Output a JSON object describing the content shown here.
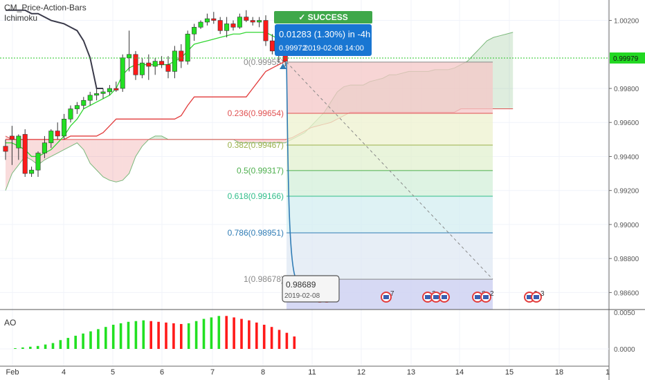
{
  "indicators": {
    "line1": "CM_Price-Action-Bars",
    "line2": "Ichimoku",
    "oscillator": "AO"
  },
  "success_banner": {
    "check": "✓",
    "label": "SUCCESS"
  },
  "trade_box": {
    "line1": "0.01283 (1.30%) in -4h",
    "line2_price": "0.99972",
    "line2_datetime": "2019-02-08  14:00"
  },
  "end_box": {
    "price": "0.98689",
    "date": "2019-02-08"
  },
  "current_price_label": "0.99979",
  "colors": {
    "up": "#22e022",
    "down": "#ff1a1a",
    "cloud_red": "#e05050",
    "cloud_green": "#7ab87a",
    "kijun": "#e23b3b",
    "tenkan": "#31d631",
    "chikou": "#3a3a4a",
    "success": "#3fa84a",
    "trade_box": "#1976d2",
    "fib_line": "#2e7bb5"
  },
  "chart_data": {
    "type": "candlestick",
    "y_axis": {
      "ticks": [
        "1.00200",
        "0.99979",
        "0.99800",
        "0.99600",
        "0.99400",
        "0.99200",
        "0.99000",
        "0.98800",
        "0.98600"
      ],
      "ylim": [
        0.985,
        1.0032
      ]
    },
    "x_axis": {
      "ticks": [
        "Feb",
        "4",
        "5",
        "6",
        "7",
        "8",
        "11",
        "12",
        "13",
        "14",
        "15",
        "18",
        "1"
      ]
    },
    "candles": [
      {
        "o": 0.9946,
        "h": 0.995,
        "l": 0.9938,
        "c": 0.9943
      },
      {
        "o": 0.9952,
        "h": 0.9958,
        "l": 0.9935,
        "c": 0.995
      },
      {
        "o": 0.9945,
        "h": 0.9953,
        "l": 0.9938,
        "c": 0.9952
      },
      {
        "o": 0.9953,
        "h": 0.9956,
        "l": 0.9928,
        "c": 0.993
      },
      {
        "o": 0.993,
        "h": 0.9934,
        "l": 0.9928,
        "c": 0.9932
      },
      {
        "o": 0.9932,
        "h": 0.9943,
        "l": 0.9928,
        "c": 0.9942
      },
      {
        "o": 0.9942,
        "h": 0.9952,
        "l": 0.9939,
        "c": 0.9948
      },
      {
        "o": 0.9948,
        "h": 0.9956,
        "l": 0.9945,
        "c": 0.9955
      },
      {
        "o": 0.9955,
        "h": 0.996,
        "l": 0.995,
        "c": 0.9952
      },
      {
        "o": 0.9952,
        "h": 0.9965,
        "l": 0.995,
        "c": 0.9962
      },
      {
        "o": 0.9962,
        "h": 0.997,
        "l": 0.996,
        "c": 0.9968
      },
      {
        "o": 0.9968,
        "h": 0.9972,
        "l": 0.9965,
        "c": 0.997
      },
      {
        "o": 0.997,
        "h": 0.9975,
        "l": 0.9968,
        "c": 0.9973
      },
      {
        "o": 0.9973,
        "h": 0.9978,
        "l": 0.997,
        "c": 0.9976
      },
      {
        "o": 0.9976,
        "h": 0.998,
        "l": 0.9973,
        "c": 0.9977
      },
      {
        "o": 0.9977,
        "h": 0.998,
        "l": 0.9974,
        "c": 0.9978
      },
      {
        "o": 0.9978,
        "h": 0.9982,
        "l": 0.9976,
        "c": 0.998
      },
      {
        "o": 0.998,
        "h": 0.9984,
        "l": 0.9978,
        "c": 0.9979
      },
      {
        "o": 0.998,
        "h": 1.0,
        "l": 0.9978,
        "c": 0.9998
      },
      {
        "o": 0.9998,
        "h": 1.0014,
        "l": 0.999,
        "c": 1.0
      },
      {
        "o": 1.0,
        "h": 1.0002,
        "l": 0.9985,
        "c": 0.9988
      },
      {
        "o": 0.9988,
        "h": 0.9998,
        "l": 0.9986,
        "c": 0.9995
      },
      {
        "o": 0.9995,
        "h": 1.0,
        "l": 0.9985,
        "c": 0.9993
      },
      {
        "o": 0.9993,
        "h": 0.9998,
        "l": 0.9988,
        "c": 0.9996
      },
      {
        "o": 0.9996,
        "h": 0.9999,
        "l": 0.9992,
        "c": 0.9994
      },
      {
        "o": 0.9994,
        "h": 0.9999,
        "l": 0.9986,
        "c": 0.999
      },
      {
        "o": 0.999,
        "h": 1.0005,
        "l": 0.9986,
        "c": 1.0002
      },
      {
        "o": 1.0002,
        "h": 1.0006,
        "l": 0.9992,
        "c": 0.9996
      },
      {
        "o": 0.9996,
        "h": 1.0014,
        "l": 0.9994,
        "c": 1.0012
      },
      {
        "o": 1.0012,
        "h": 1.0018,
        "l": 1.0008,
        "c": 1.0016
      },
      {
        "o": 1.0016,
        "h": 1.002,
        "l": 1.0015,
        "c": 1.0019
      },
      {
        "o": 1.0019,
        "h": 1.0024,
        "l": 1.0017,
        "c": 1.0021
      },
      {
        "o": 1.0021,
        "h": 1.0025,
        "l": 1.0018,
        "c": 1.002
      },
      {
        "o": 1.002,
        "h": 1.0022,
        "l": 1.0012,
        "c": 1.0014
      },
      {
        "o": 1.0014,
        "h": 1.0022,
        "l": 1.001,
        "c": 1.0018
      },
      {
        "o": 1.0018,
        "h": 1.002,
        "l": 1.0014,
        "c": 1.0016
      },
      {
        "o": 1.0016,
        "h": 1.0024,
        "l": 1.0015,
        "c": 1.0022
      },
      {
        "o": 1.0022,
        "h": 1.0026,
        "l": 1.0019,
        "c": 1.002
      },
      {
        "o": 1.002,
        "h": 1.0022,
        "l": 1.0017,
        "c": 1.0019
      },
      {
        "o": 1.0019,
        "h": 1.0022,
        "l": 1.0016,
        "c": 1.002
      },
      {
        "o": 1.002,
        "h": 1.0023,
        "l": 1.0005,
        "c": 1.0008
      },
      {
        "o": 1.0008,
        "h": 1.0012,
        "l": 1.0,
        "c": 1.0002
      },
      {
        "o": 1.0002,
        "h": 1.001,
        "l": 0.9995,
        "c": 1.0002
      },
      {
        "o": 1.0002,
        "h": 1.0008,
        "l": 0.9993,
        "c": 0.9996
      }
    ],
    "tenkan": [
      0.9948,
      0.9948,
      0.9946,
      0.9944,
      0.994,
      0.994,
      0.9942,
      0.9944,
      0.9948,
      0.9952,
      0.9958,
      0.9962,
      0.9968,
      0.997,
      0.9972,
      0.9974,
      0.9976,
      0.998,
      0.9988,
      0.9992,
      0.9994,
      0.9994,
      0.9994,
      0.9994,
      0.9994,
      0.9994,
      0.9996,
      0.9998,
      1.0002,
      1.0006,
      1.0007,
      1.0008,
      1.0009,
      1.001,
      1.0011,
      1.0012,
      1.0012,
      1.0013,
      1.0013,
      1.0013,
      1.0013,
      1.0011,
      1.0009,
      1.0006
    ],
    "kijun": [
      0.995,
      0.995,
      0.995,
      0.995,
      0.995,
      0.995,
      0.995,
      0.995,
      0.995,
      0.995,
      0.9952,
      0.9952,
      0.9952,
      0.9952,
      0.9952,
      0.9954,
      0.9958,
      0.9962,
      0.9962,
      0.9962,
      0.9962,
      0.9962,
      0.9962,
      0.9962,
      0.9962,
      0.9962,
      0.9962,
      0.9964,
      0.997,
      0.9975,
      0.9975,
      0.9975,
      0.9975,
      0.9975,
      0.9975,
      0.9975,
      0.9975,
      0.9975,
      0.998,
      0.9985,
      0.999,
      0.9992,
      0.9994,
      0.9996
    ],
    "span_a": [
      0.992,
      0.993,
      0.9935,
      0.994,
      0.9938,
      0.9935,
      0.9938,
      0.994,
      0.9942,
      0.9944,
      0.9946,
      0.9948,
      0.9944,
      0.9936,
      0.9932,
      0.9928,
      0.9926,
      0.9925,
      0.9926,
      0.993,
      0.994,
      0.9946,
      0.995,
      0.9952,
      0.9952,
      0.995,
      0.995,
      0.995,
      0.995,
      0.995,
      0.995,
      0.995,
      0.995,
      0.995,
      0.995,
      0.995,
      0.9948,
      0.9948,
      0.9948,
      0.9948,
      0.9948,
      0.9948,
      0.9948,
      0.9948,
      0.995,
      0.9952,
      0.9954,
      0.9958,
      0.9962,
      0.9966,
      0.9972,
      0.9978,
      0.9981,
      0.9982,
      0.9982,
      0.9982,
      0.9984,
      0.9985,
      0.9986,
      0.9988,
      0.9988,
      0.9989,
      0.999,
      0.999,
      0.999,
      0.999,
      0.9991,
      0.9991,
      0.9991,
      0.9992,
      0.9994,
      0.9996,
      1.0,
      1.0004,
      1.0008,
      1.001,
      1.0011,
      1.0012,
      1.0013
    ],
    "span_b": [
      0.9952,
      0.995,
      0.995,
      0.995,
      0.995,
      0.995,
      0.995,
      0.995,
      0.995,
      0.995,
      0.995,
      0.995,
      0.995,
      0.995,
      0.995,
      0.995,
      0.995,
      0.995,
      0.995,
      0.995,
      0.995,
      0.995,
      0.995,
      0.995,
      0.995,
      0.995,
      0.995,
      0.995,
      0.995,
      0.995,
      0.995,
      0.995,
      0.995,
      0.995,
      0.995,
      0.995,
      0.995,
      0.995,
      0.995,
      0.995,
      0.995,
      0.995,
      0.995,
      0.995,
      0.9951,
      0.9953,
      0.9955,
      0.9957,
      0.9958,
      0.9959,
      0.996,
      0.9962,
      0.9964,
      0.9966,
      0.9966,
      0.9966,
      0.9966,
      0.9966,
      0.9966,
      0.9966,
      0.9966,
      0.9966,
      0.9966,
      0.9966,
      0.9966,
      0.9966,
      0.9966,
      0.9966,
      0.9966,
      0.9966,
      0.9968,
      0.9968,
      0.9968,
      0.9968,
      0.9968,
      0.9968,
      0.9968,
      0.9968,
      0.9968
    ],
    "chikou": [
      1.0026,
      1.0026,
      1.0026,
      1.0026,
      1.0024,
      1.0024,
      1.0022,
      1.002,
      1.0019,
      1.0018,
      1.0016,
      1.0014,
      1.0008,
      0.9998,
      0.998,
      0.998
    ],
    "fib_levels": [
      {
        "label": "0(0.99955)",
        "value": 0.99955
      },
      {
        "label": "0.236(0.99654)",
        "value": 0.99654
      },
      {
        "label": "0.382(0.99467)",
        "value": 0.99467
      },
      {
        "label": "0.5(0.99317)",
        "value": 0.99317
      },
      {
        "label": "0.618(0.99166)",
        "value": 0.99166
      },
      {
        "label": "0.786(0.98951)",
        "value": 0.98951
      },
      {
        "label": "1(0.98678)",
        "value": 0.98678
      }
    ],
    "fib_band_colors": [
      "#f4c7c7",
      "#eef2cf",
      "#e1f0cf",
      "#d3efd9",
      "#d3eef0",
      "#dfe8f3",
      "#e5e5e5",
      "#cfd2f2"
    ],
    "ao": {
      "ylabels": [
        "0.0050",
        "0.0000"
      ],
      "bars": [
        {
          "v": 0.0001,
          "up": true
        },
        {
          "v": 0.0002,
          "up": true
        },
        {
          "v": 0.0003,
          "up": true
        },
        {
          "v": 0.0004,
          "up": true
        },
        {
          "v": 0.0006,
          "up": true
        },
        {
          "v": 0.0008,
          "up": true
        },
        {
          "v": 0.0012,
          "up": true
        },
        {
          "v": 0.0015,
          "up": true
        },
        {
          "v": 0.0018,
          "up": true
        },
        {
          "v": 0.0021,
          "up": true
        },
        {
          "v": 0.0024,
          "up": true
        },
        {
          "v": 0.0027,
          "up": true
        },
        {
          "v": 0.003,
          "up": true
        },
        {
          "v": 0.0033,
          "up": true
        },
        {
          "v": 0.0035,
          "up": true
        },
        {
          "v": 0.0037,
          "up": true
        },
        {
          "v": 0.0038,
          "up": true
        },
        {
          "v": 0.0039,
          "up": true
        },
        {
          "v": 0.0038,
          "up": false
        },
        {
          "v": 0.0037,
          "up": false
        },
        {
          "v": 0.0036,
          "up": false
        },
        {
          "v": 0.0035,
          "up": false
        },
        {
          "v": 0.0034,
          "up": false
        },
        {
          "v": 0.0035,
          "up": true
        },
        {
          "v": 0.0038,
          "up": true
        },
        {
          "v": 0.0041,
          "up": true
        },
        {
          "v": 0.0043,
          "up": true
        },
        {
          "v": 0.0045,
          "up": true
        },
        {
          "v": 0.0045,
          "up": false
        },
        {
          "v": 0.0043,
          "up": false
        },
        {
          "v": 0.0041,
          "up": false
        },
        {
          "v": 0.0039,
          "up": false
        },
        {
          "v": 0.0036,
          "up": false
        },
        {
          "v": 0.0033,
          "up": false
        },
        {
          "v": 0.003,
          "up": false
        },
        {
          "v": 0.0026,
          "up": false
        },
        {
          "v": 0.0022,
          "up": false
        },
        {
          "v": 0.0017,
          "up": false
        }
      ]
    },
    "event_badges": [
      "",
      "",
      "7",
      "2",
      "3",
      "",
      "8",
      "2",
      "6",
      "3"
    ]
  }
}
